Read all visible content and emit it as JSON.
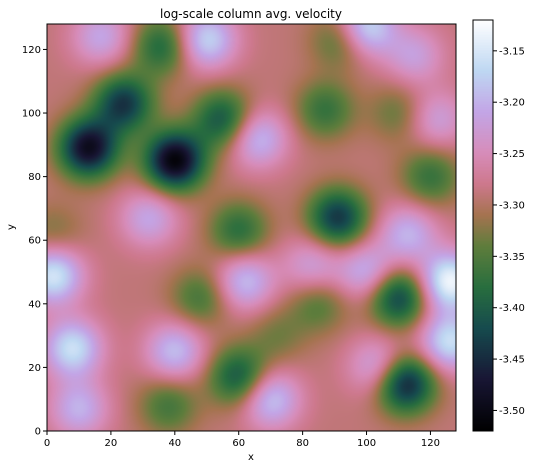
{
  "chart_data": {
    "type": "heatmap",
    "title": "log-scale column avg. velocity",
    "xlabel": "x",
    "ylabel": "y",
    "xlim": [
      0,
      128
    ],
    "ylim": [
      0,
      128
    ],
    "x_ticks": [
      "0",
      "20",
      "40",
      "60",
      "80",
      "100",
      "120"
    ],
    "y_ticks": [
      "0",
      "20",
      "40",
      "60",
      "80",
      "100",
      "120"
    ],
    "colorbar": {
      "colormap": "cubehelix-like (black-green-pink-lavender-white)",
      "range": [
        -3.52,
        -3.12
      ],
      "ticks": [
        "-3.50",
        "-3.45",
        "-3.40",
        "-3.35",
        "-3.30",
        "-3.25",
        "-3.20",
        "-3.15"
      ]
    },
    "value_range": [
      -3.51,
      -3.13
    ],
    "features": {
      "minima": [
        {
          "x": 40,
          "y": 85,
          "value": -3.51
        },
        {
          "x": 13,
          "y": 89,
          "value": -3.49
        },
        {
          "x": 112,
          "y": 15,
          "value": -3.47
        },
        {
          "x": 24,
          "y": 103,
          "value": -3.44
        },
        {
          "x": 91,
          "y": 67,
          "value": -3.44
        },
        {
          "x": 110,
          "y": 42,
          "value": -3.43
        },
        {
          "x": 60,
          "y": 17,
          "value": -3.41
        },
        {
          "x": 55,
          "y": 98,
          "value": -3.41
        },
        {
          "x": 36,
          "y": 121,
          "value": -3.39
        },
        {
          "x": 60,
          "y": 63,
          "value": -3.38
        },
        {
          "x": 87,
          "y": 101,
          "value": -3.37
        },
        {
          "x": 120,
          "y": 80,
          "value": -3.37
        },
        {
          "x": 48,
          "y": 42,
          "value": -3.36
        },
        {
          "x": 92,
          "y": 123,
          "value": -3.36
        },
        {
          "x": 38,
          "y": 8,
          "value": -3.36
        },
        {
          "x": 85,
          "y": 40,
          "value": -3.35
        },
        {
          "x": 110,
          "y": 100,
          "value": -3.34
        },
        {
          "x": 2,
          "y": 62,
          "value": -3.33
        },
        {
          "x": 72,
          "y": 30,
          "value": -3.33
        }
      ],
      "maxima": [
        {
          "x": 126,
          "y": 47,
          "value": -3.13
        },
        {
          "x": 2,
          "y": 49,
          "value": -3.15
        },
        {
          "x": 8,
          "y": 26,
          "value": -3.16
        },
        {
          "x": 126,
          "y": 28,
          "value": -3.16
        },
        {
          "x": 100,
          "y": 127,
          "value": -3.16
        },
        {
          "x": 50,
          "y": 123,
          "value": -3.17
        },
        {
          "x": 70,
          "y": 10,
          "value": -3.18
        },
        {
          "x": 62,
          "y": 47,
          "value": -3.19
        },
        {
          "x": 40,
          "y": 25,
          "value": -3.19
        },
        {
          "x": 66,
          "y": 92,
          "value": -3.19
        },
        {
          "x": 100,
          "y": 50,
          "value": -3.2
        },
        {
          "x": 113,
          "y": 62,
          "value": -3.2
        },
        {
          "x": 10,
          "y": 7,
          "value": -3.2
        },
        {
          "x": 104,
          "y": 20,
          "value": -3.2
        },
        {
          "x": 17,
          "y": 124,
          "value": -3.21
        },
        {
          "x": 32,
          "y": 67,
          "value": -3.21
        },
        {
          "x": 83,
          "y": 52,
          "value": -3.22
        },
        {
          "x": 115,
          "y": 118,
          "value": -3.22
        },
        {
          "x": 122,
          "y": 98,
          "value": -3.22
        }
      ]
    }
  }
}
